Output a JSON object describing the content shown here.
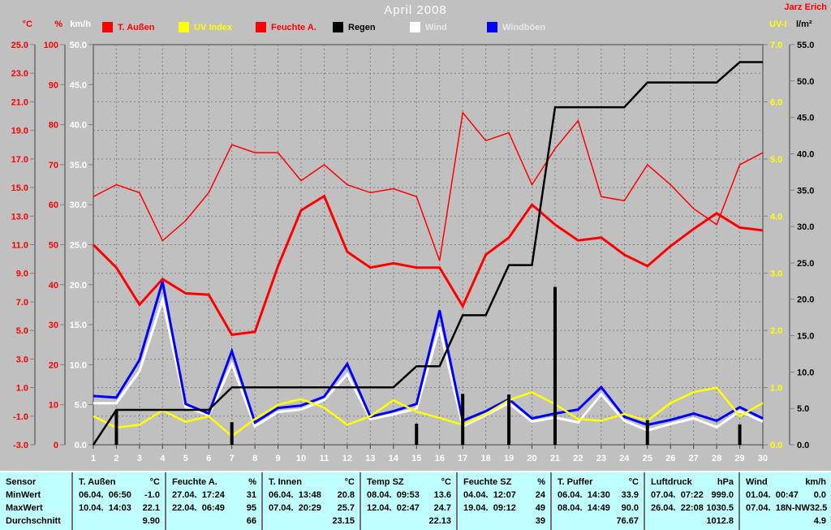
{
  "header": {
    "title": "April 2008",
    "author": "Jarz Erich"
  },
  "legend": [
    {
      "label": "T. Außen",
      "swatch": "#ff0000",
      "text_color": "#ff0000"
    },
    {
      "label": "UV Index",
      "swatch": "#ffff00",
      "text_color": "#ffff00"
    },
    {
      "label": "Feuchte A.",
      "swatch": "#ff0000",
      "text_color": "#ff0000"
    },
    {
      "label": "Regen",
      "swatch": "#000000",
      "text_color": "#000000"
    },
    {
      "label": "Wind",
      "swatch": "#ffffff",
      "text_color": "#e8e8e8"
    },
    {
      "label": "Windböen",
      "swatch": "#0000ff",
      "text_color": "#e8e8e8"
    }
  ],
  "chart_data": {
    "type": "line",
    "title": "April 2008",
    "x": [
      1,
      2,
      3,
      4,
      5,
      6,
      7,
      8,
      9,
      10,
      11,
      12,
      13,
      14,
      15,
      16,
      17,
      18,
      19,
      20,
      21,
      22,
      23,
      24,
      25,
      26,
      27,
      28,
      29,
      30
    ],
    "grid_divisions": 14,
    "grid": "dashed",
    "scales": {
      "temp": [
        -3,
        25
      ],
      "humidity": [
        0,
        100
      ],
      "wind": [
        0,
        50
      ],
      "uv": [
        0,
        7
      ],
      "rain": [
        0,
        55
      ]
    },
    "axes_left": [
      {
        "label": "°C",
        "color": "#ff0000",
        "min": -3,
        "max": 25,
        "step": 2,
        "decimals": 1
      },
      {
        "label": "%",
        "color": "#ff0000",
        "min": 0,
        "max": 100,
        "step": 10,
        "decimals": 0
      },
      {
        "label": "km/h",
        "color": "#ffffff",
        "min": 0,
        "max": 50,
        "step": 5,
        "decimals": 1
      }
    ],
    "axes_right": [
      {
        "label": "UV-I",
        "color": "#ffff00",
        "min": 0,
        "max": 7,
        "step": 1,
        "decimals": 1
      },
      {
        "label": "l/m²",
        "color": "#000000",
        "min": 0,
        "max": 55,
        "step": 5,
        "decimals": 1
      }
    ],
    "series": [
      {
        "name": "Feuchte A.",
        "color": "#ff0000",
        "width": 1.5,
        "scale": "humidity",
        "z": 1,
        "values": [
          62,
          65,
          63,
          51,
          56,
          63,
          75,
          73,
          73,
          66,
          70,
          65,
          63,
          64,
          62,
          46,
          83,
          76,
          78,
          65,
          74,
          81,
          62,
          61,
          70,
          65,
          59,
          55,
          70,
          73
        ]
      },
      {
        "name": "T. Außen",
        "color": "#ff0000",
        "width": 3,
        "scale": "temp",
        "z": 2,
        "values": [
          11.0,
          9.4,
          6.8,
          8.6,
          7.6,
          7.5,
          4.7,
          4.9,
          9.5,
          13.4,
          14.4,
          10.5,
          9.4,
          9.7,
          9.4,
          9.4,
          6.7,
          10.3,
          11.5,
          13.8,
          12.4,
          11.3,
          11.5,
          10.3,
          9.5,
          10.9,
          12.1,
          13.2,
          12.2,
          12.0
        ]
      },
      {
        "name": "Wind",
        "color": "#ffffff",
        "width": 3,
        "scale": "wind",
        "z": 3,
        "values": [
          5.2,
          5.2,
          9.2,
          18.1,
          4.7,
          3.7,
          10.1,
          2.3,
          4.1,
          4.4,
          5.6,
          8.8,
          3.2,
          3.8,
          4.5,
          14.7,
          2.3,
          3.7,
          5.2,
          2.9,
          3.4,
          2.8,
          6.3,
          3.0,
          1.8,
          2.6,
          3.3,
          2.2,
          4.2,
          2.9
        ]
      },
      {
        "name": "Windböen",
        "color": "#0000ff",
        "width": 3,
        "scale": "wind",
        "z": 4,
        "values": [
          6.1,
          5.9,
          10.6,
          20.4,
          5.1,
          3.9,
          11.7,
          2.8,
          4.6,
          4.9,
          6.0,
          10.1,
          3.5,
          4.2,
          5.1,
          16.8,
          3.0,
          4.2,
          5.7,
          3.3,
          3.9,
          4.4,
          7.2,
          3.5,
          2.5,
          3.1,
          3.9,
          3.0,
          4.7,
          3.3
        ]
      },
      {
        "name": "UV Index",
        "color": "#ffff00",
        "width": 2.5,
        "scale": "uv",
        "z": 5,
        "values": [
          0.5,
          0.3,
          0.35,
          0.6,
          0.4,
          0.5,
          0.15,
          0.45,
          0.7,
          0.8,
          0.65,
          0.35,
          0.5,
          0.78,
          0.58,
          0.47,
          0.35,
          0.54,
          0.78,
          0.92,
          0.71,
          0.45,
          0.42,
          0.54,
          0.42,
          0.73,
          0.92,
          1.0,
          0.5,
          0.73
        ]
      },
      {
        "name": "Regen",
        "color": "#000000",
        "width": 2.5,
        "scale": "rain",
        "z": 6,
        "values": [
          0,
          4.8,
          4.8,
          4.8,
          4.8,
          4.8,
          7.9,
          7.9,
          7.9,
          7.9,
          7.9,
          7.9,
          7.9,
          7.9,
          10.8,
          10.8,
          17.8,
          17.8,
          24.7,
          24.7,
          46.4,
          46.4,
          46.4,
          46.4,
          49.8,
          49.8,
          49.8,
          49.8,
          52.6,
          52.6
        ]
      }
    ],
    "rain_bars": [
      {
        "day": 2,
        "value": 4.8
      },
      {
        "day": 7,
        "value": 3.1
      },
      {
        "day": 15,
        "value": 2.9
      },
      {
        "day": 17,
        "value": 7.0
      },
      {
        "day": 19,
        "value": 6.9
      },
      {
        "day": 21,
        "value": 21.7
      },
      {
        "day": 25,
        "value": 3.4
      },
      {
        "day": 29,
        "value": 2.8
      }
    ]
  },
  "table": {
    "row_labels": [
      "Sensor",
      "MinWert",
      "MaxWert",
      "Durchschnitt"
    ],
    "columns": [
      {
        "name": "T. Außen",
        "unit": "°C",
        "min_date": "06.04.  06:50",
        "min": "-1.0",
        "max_date": "10.04.  14:03",
        "max": "22.1",
        "avg": "9.90"
      },
      {
        "name": "Feuchte A.",
        "unit": "%",
        "min_date": "27.04.  17:24",
        "min": "31",
        "max_date": "22.04.  06:49",
        "max": "95",
        "avg": "66"
      },
      {
        "name": "T. Innen",
        "unit": "°C",
        "min_date": "06.04.  13:48",
        "min": "20.8",
        "max_date": "07.04.  20:29",
        "max": "25.7",
        "avg": "23.15"
      },
      {
        "name": "Temp SZ",
        "unit": "°C",
        "min_date": "08.04.  09:53",
        "min": "13.6",
        "max_date": "12.04.  02:47",
        "max": "24.7",
        "avg": "22.13"
      },
      {
        "name": "Feuchte SZ",
        "unit": "%",
        "min_date": "04.04.  12:07",
        "min": "24",
        "max_date": "19.04.  09:12",
        "max": "49",
        "avg": "39"
      },
      {
        "name": "T. Puffer",
        "unit": "°C",
        "min_date": "06.04.  14:30",
        "min": "33.9",
        "max_date": "08.04.  14:49",
        "max": "90.0",
        "avg": "76.67"
      },
      {
        "name": "Luftdruck",
        "unit": "hPa",
        "min_date": "07.04.  07:22",
        "min": "999.0",
        "max_date": "26.04.  22:08",
        "max": "1030.5",
        "avg": "1012.8"
      },
      {
        "name": "Wind",
        "unit": "km/h",
        "min_date": "01.04.  00:47",
        "min": "0.0",
        "max_date": "07.04.  18N-NW",
        "max": "32.5",
        "avg": "4.9"
      }
    ]
  }
}
